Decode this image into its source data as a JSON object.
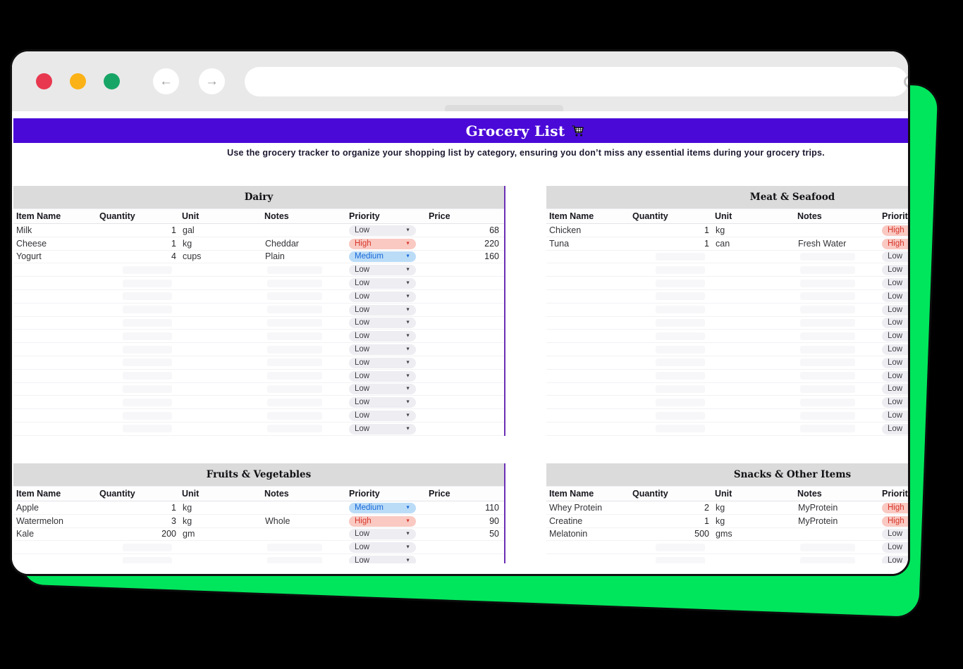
{
  "colors": {
    "shadow_green": "#00E65C",
    "chrome_gray": "#E9E9E9",
    "traffic_red": "#E8384F",
    "traffic_yellow": "#FBB216",
    "traffic_green": "#17A566",
    "header_purple": "#4B09D8",
    "band_gray": "#DBDBDB",
    "divider_purple": "#6A2FB5"
  },
  "browser": {
    "back_icon": "←",
    "forward_icon": "→",
    "url_value": ""
  },
  "header": {
    "title": "Grocery List",
    "subtitle": "Use the grocery tracker to organize your shopping list by category, ensuring you don’t miss any essential items during your grocery trips."
  },
  "table_columns": [
    "Item Name",
    "Quantity",
    "Unit",
    "Notes",
    "Priority",
    "Price"
  ],
  "dropdown_arrow": "▼",
  "empty_row_priority": "Low",
  "priority_styles": {
    "Low": {
      "bg": "#EDEDF2",
      "fg": "#3F3F46"
    },
    "Medium": {
      "bg": "#BBDCF7",
      "fg": "#1667D8"
    },
    "High": {
      "bg": "#F9C9C2",
      "fg": "#D7362B"
    }
  },
  "tables": [
    {
      "title": "Dairy",
      "total_rows": 16,
      "rows": [
        {
          "item": "Milk",
          "qty": "1",
          "unit": "gal",
          "notes": "",
          "priority": "Low",
          "price": "68"
        },
        {
          "item": "Cheese",
          "qty": "1",
          "unit": "kg",
          "notes": "Cheddar",
          "priority": "High",
          "price": "220"
        },
        {
          "item": "Yogurt",
          "qty": "4",
          "unit": "cups",
          "notes": "Plain",
          "priority": "Medium",
          "price": "160"
        }
      ]
    },
    {
      "title": "Meat & Seafood",
      "total_rows": 16,
      "rows": [
        {
          "item": "Chicken",
          "qty": "1",
          "unit": "kg",
          "notes": "",
          "priority": "High",
          "price": ""
        },
        {
          "item": "Tuna",
          "qty": "1",
          "unit": "can",
          "notes": "Fresh Water",
          "priority": "High",
          "price": ""
        }
      ]
    },
    {
      "title": "Fruits & Vegetables",
      "total_rows": 5,
      "rows": [
        {
          "item": "Apple",
          "qty": "1",
          "unit": "kg",
          "notes": "",
          "priority": "Medium",
          "price": "110"
        },
        {
          "item": "Watermelon",
          "qty": "3",
          "unit": "kg",
          "notes": "Whole",
          "priority": "High",
          "price": "90"
        },
        {
          "item": "Kale",
          "qty": "200",
          "unit": "gm",
          "notes": "",
          "priority": "Low",
          "price": "50"
        }
      ]
    },
    {
      "title": "Snacks & Other Items",
      "total_rows": 5,
      "rows": [
        {
          "item": "Whey Protein",
          "qty": "2",
          "unit": "kg",
          "notes": "MyProtein",
          "priority": "High",
          "price": ""
        },
        {
          "item": "Creatine",
          "qty": "1",
          "unit": "kg",
          "notes": "MyProtein",
          "priority": "High",
          "price": ""
        },
        {
          "item": "Melatonin",
          "qty": "500",
          "unit": "gms",
          "notes": "",
          "priority": "Low",
          "price": ""
        }
      ]
    }
  ]
}
